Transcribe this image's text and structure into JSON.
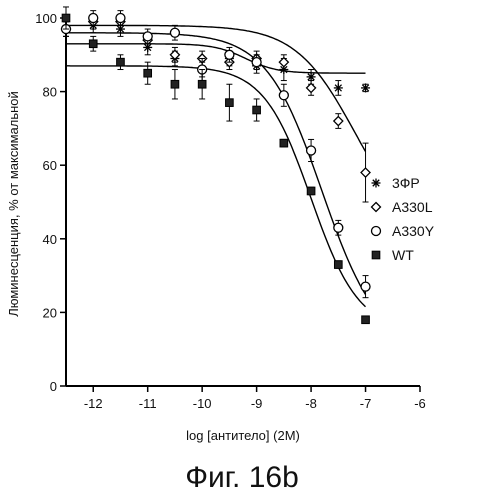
{
  "chart_data": {
    "type": "scatter",
    "xlabel": "log [антитело] (2M)",
    "ylabel": "Люминесценция, % от максимальной",
    "xlim": [
      -12.5,
      -6
    ],
    "ylim": [
      0,
      100
    ],
    "x_ticks": [
      -12,
      -11,
      -10,
      -9,
      -8,
      -7,
      -6
    ],
    "y_ticks": [
      0,
      20,
      40,
      60,
      80,
      100
    ],
    "grid": false,
    "legend_position": "right",
    "series": [
      {
        "name": "3ФР",
        "marker": "asterisk",
        "x": [
          -12.5,
          -12,
          -11.5,
          -11,
          -10.5,
          -10,
          -9.5,
          -9,
          -8.5,
          -8,
          -7.5,
          -7
        ],
        "y": [
          97,
          98,
          97,
          92,
          89,
          86,
          89,
          87,
          86,
          84,
          81,
          81
        ],
        "err": [
          2,
          2,
          2,
          2,
          2,
          2,
          2,
          2,
          3,
          2,
          2,
          1
        ],
        "fit": {
          "top": 93,
          "bottom": 85,
          "logEC50": -9.2,
          "hill": 1.5
        }
      },
      {
        "name": "A330L",
        "marker": "diamond",
        "x": [
          -12.5,
          -12,
          -11.5,
          -11,
          -10.5,
          -10,
          -9.5,
          -9,
          -8.5,
          -8,
          -7.5,
          -7
        ],
        "y": [
          97,
          99,
          99,
          94,
          90,
          89,
          88,
          89,
          88,
          81,
          72,
          58
        ],
        "err": [
          2,
          2,
          2,
          2,
          2,
          2,
          2,
          2,
          2,
          2,
          2,
          8
        ],
        "fit": {
          "top": 98,
          "bottom": 40,
          "logEC50": -7.2,
          "hill": 0.8
        }
      },
      {
        "name": "A330Y",
        "marker": "circle",
        "x": [
          -12.5,
          -12,
          -11.5,
          -11,
          -10.5,
          -10,
          -9.5,
          -9,
          -8.5,
          -8,
          -7.5,
          -7
        ],
        "y": [
          97,
          100,
          100,
          95,
          96,
          86,
          90,
          88,
          79,
          64,
          43,
          27
        ],
        "err": [
          2,
          2,
          2,
          2,
          2,
          3,
          2,
          2,
          3,
          3,
          2,
          3
        ],
        "fit": {
          "top": 96,
          "bottom": 10,
          "logEC50": -7.8,
          "hill": 0.85
        }
      },
      {
        "name": "WT",
        "marker": "square",
        "x": [
          -12.5,
          -12,
          -11.5,
          -11,
          -10.5,
          -10,
          -9.5,
          -9,
          -8.5,
          -8,
          -7.5,
          -7
        ],
        "y": [
          100,
          93,
          88,
          85,
          82,
          82,
          77,
          75,
          66,
          53,
          33,
          18
        ],
        "err": [
          3,
          2,
          2,
          3,
          4,
          4,
          5,
          3,
          1,
          1,
          1,
          1
        ],
        "fit": {
          "top": 87,
          "bottom": 15,
          "logEC50": -8.0,
          "hill": 1.0
        }
      }
    ]
  },
  "caption": "Фиг. 16b"
}
